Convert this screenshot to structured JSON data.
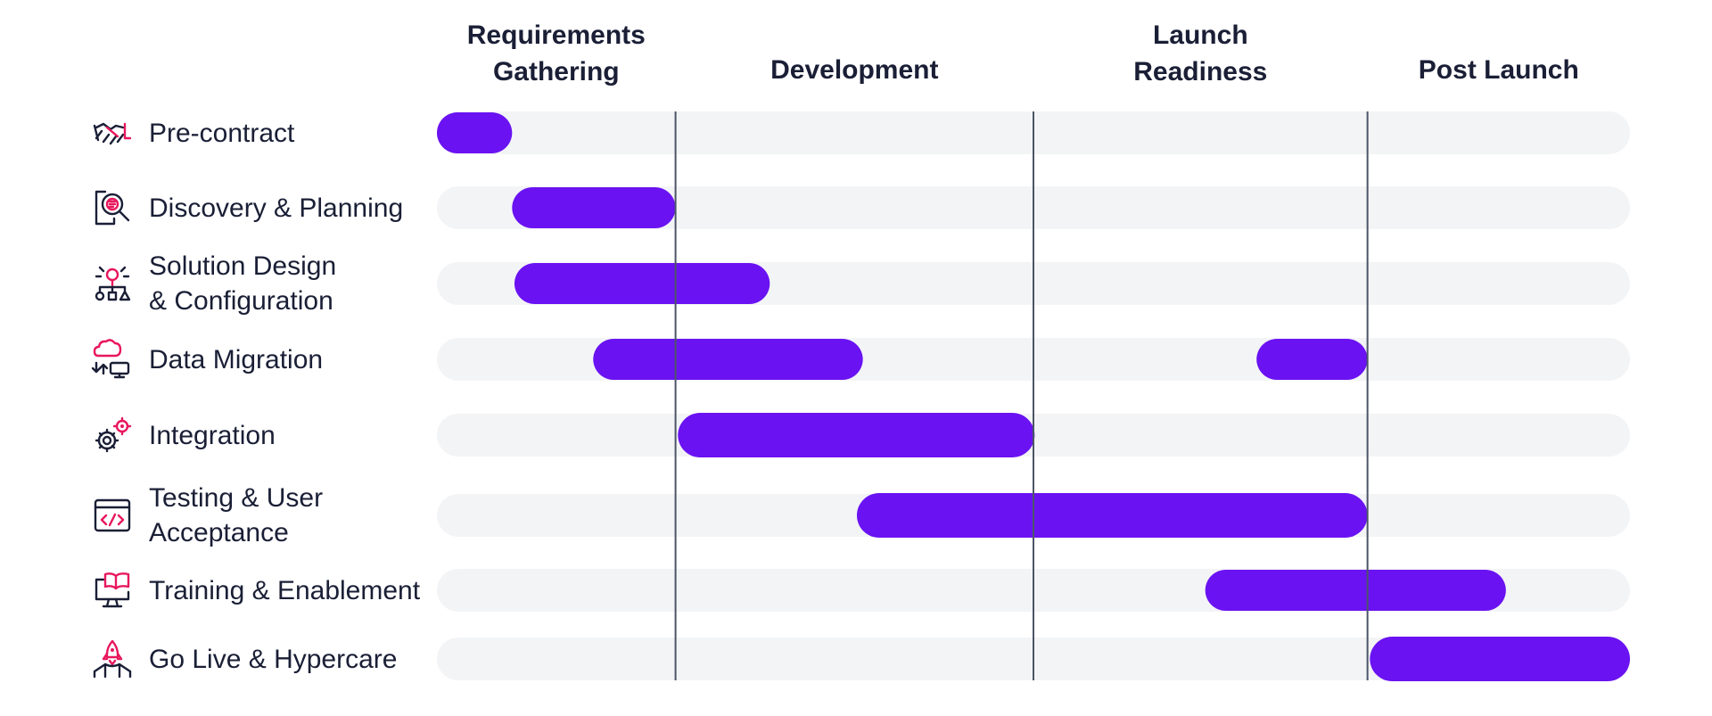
{
  "chart_data": {
    "type": "gantt",
    "phases": [
      {
        "name": "Requirements Gathering",
        "lines": [
          "Requirements",
          "Gathering"
        ],
        "span": [
          0,
          2
        ]
      },
      {
        "name": "Development",
        "lines": [
          "Development"
        ],
        "span": [
          2,
          5
        ]
      },
      {
        "name": "Launch Readiness",
        "lines": [
          "Launch",
          "Readiness"
        ],
        "span": [
          5,
          7.8
        ]
      },
      {
        "name": "Post Launch",
        "lines": [
          "Post Launch"
        ],
        "span": [
          7.8,
          10
        ]
      }
    ],
    "tasks": [
      {
        "name": "Pre-contract",
        "lines": [
          "Pre-contract"
        ],
        "icon": "handshake-icon",
        "segments": [
          [
            0,
            0.63
          ]
        ]
      },
      {
        "name": "Discovery & Planning",
        "lines": [
          "Discovery & Planning"
        ],
        "icon": "document-search-icon",
        "segments": [
          [
            0.63,
            2
          ]
        ]
      },
      {
        "name": "Solution Design & Configuration",
        "lines": [
          "Solution Design",
          "& Configuration"
        ],
        "icon": "design-shapes-icon",
        "segments": [
          [
            0.65,
            2.79
          ]
        ]
      },
      {
        "name": "Data Migration",
        "lines": [
          "Data Migration"
        ],
        "icon": "cloud-migration-icon",
        "segments": [
          [
            1.31,
            3.57
          ],
          [
            6.87,
            7.8
          ]
        ]
      },
      {
        "name": "Integration",
        "lines": [
          "Integration"
        ],
        "icon": "gears-icon",
        "segments": [
          [
            2.02,
            5.01
          ]
        ]
      },
      {
        "name": "Testing & User Acceptance",
        "lines": [
          " Testing & User",
          "Acceptance"
        ],
        "icon": "code-window-icon",
        "segments": [
          [
            3.52,
            7.8
          ]
        ]
      },
      {
        "name": "Training & Enablement",
        "lines": [
          "Training & Enablement"
        ],
        "icon": "monitor-book-icon",
        "segments": [
          [
            6.44,
            8.96
          ]
        ]
      },
      {
        "name": "Go Live & Hypercare",
        "lines": [
          "Go Live & Hypercare"
        ],
        "icon": "rocket-launch-icon",
        "segments": [
          [
            7.82,
            10
          ]
        ]
      }
    ],
    "x_range": [
      0,
      10
    ],
    "dividers": [
      2,
      5,
      7.8
    ],
    "colors": {
      "bar": "#6a12f2",
      "track": "#f3f4f6",
      "divider": "#4b5566",
      "text": "#1a1f36",
      "icon_accent": "#e8175d"
    }
  }
}
